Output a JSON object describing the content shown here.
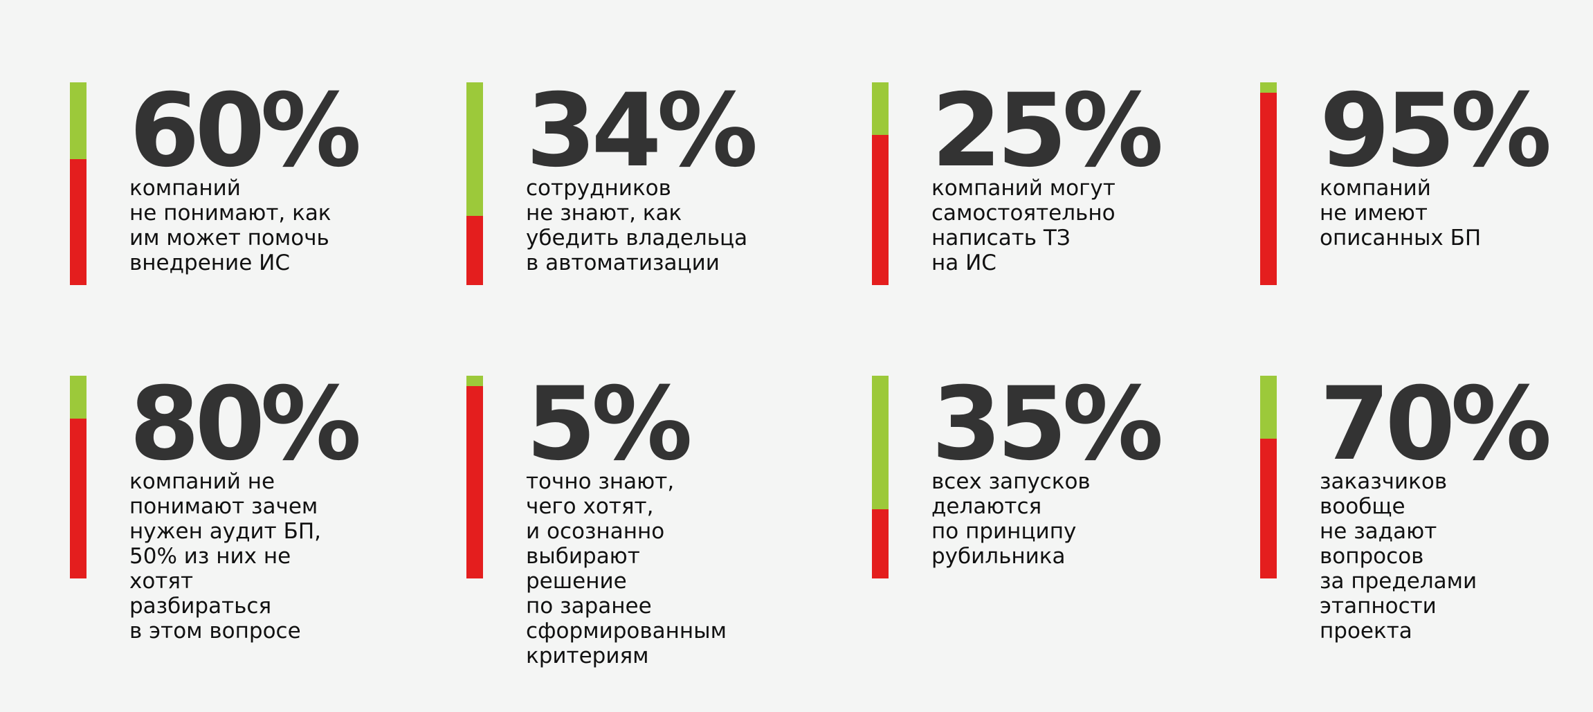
{
  "chart_data": {
    "type": "bar",
    "stats": [
      {
        "value": "60%",
        "fraction": 0.38,
        "caption": [
          "компаний",
          "не понимают, как",
          "им может помочь",
          "внедрение ИС"
        ]
      },
      {
        "value": "34%",
        "fraction": 0.66,
        "caption": [
          "сотрудников",
          "не знают, как",
          "убедить владельца",
          "в автоматизации"
        ]
      },
      {
        "value": "25%",
        "fraction": 0.26,
        "caption": [
          "компаний могут",
          "самостоятельно",
          "написать ТЗ",
          "на ИС"
        ]
      },
      {
        "value": "95%",
        "fraction": 0.05,
        "caption": [
          "компаний",
          "не имеют",
          "описанных БП"
        ]
      },
      {
        "value": "80%",
        "fraction": 0.21,
        "caption": [
          "компаний не",
          "понимают зачем",
          "нужен аудит БП,",
          "50% из них не",
          "хотят",
          "разбираться",
          "в этом вопросе"
        ]
      },
      {
        "value": "5%",
        "fraction": 0.05,
        "caption": [
          "точно знают,",
          "чего хотят,",
          "и осознанно",
          "выбирают",
          "решение",
          "по заранее",
          "сформированным",
          "критериям"
        ]
      },
      {
        "value": "35%",
        "fraction": 0.66,
        "caption": [
          "всех запусков",
          "делаются",
          "по принципу",
          "рубильника"
        ]
      },
      {
        "value": "70%",
        "fraction": 0.31,
        "caption": [
          "заказчиков",
          "вообще",
          "не задают",
          "вопросов",
          "за пределами",
          "этапности",
          "проекта"
        ]
      }
    ],
    "colors": {
      "accent_green": "#9cc93a",
      "accent_red": "#e41e1e",
      "text": "#333333",
      "background": "#f4f5f4"
    }
  }
}
